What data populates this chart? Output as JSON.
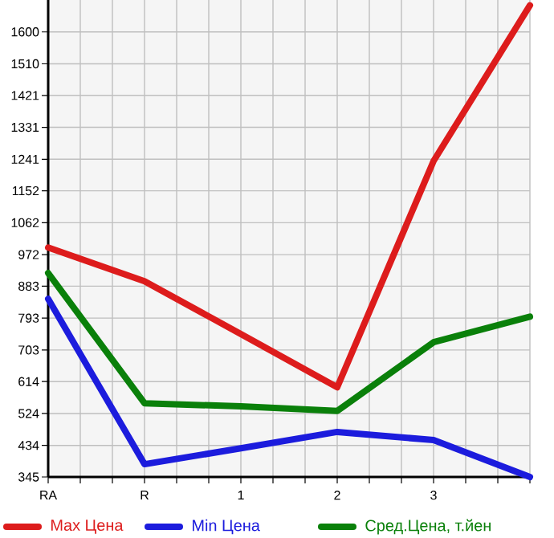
{
  "chart_data": {
    "type": "line",
    "categories": [
      "RA",
      "R",
      "1",
      "2",
      "3",
      null
    ],
    "series": [
      {
        "name": "Max Цена",
        "color": "#dd1c1c",
        "values": [
          992,
          897,
          748,
          598,
          1236,
          1675
        ]
      },
      {
        "name": "Min Цена",
        "color": "#1c1cdd",
        "values": [
          847,
          381,
          426,
          472,
          449,
          345
        ]
      },
      {
        "name": "Сред.Цена, т.йен",
        "color": "#0a800a",
        "values": [
          920,
          553,
          544,
          531,
          725,
          797
        ]
      }
    ],
    "ylim": [
      345,
      1690
    ],
    "yticks": [
      345,
      434,
      524,
      614,
      703,
      793,
      883,
      972,
      1062,
      1152,
      1241,
      1331,
      1421,
      1510,
      1600
    ],
    "grid": true,
    "legend": "bottom",
    "marker": "none",
    "line_style": "solid"
  }
}
